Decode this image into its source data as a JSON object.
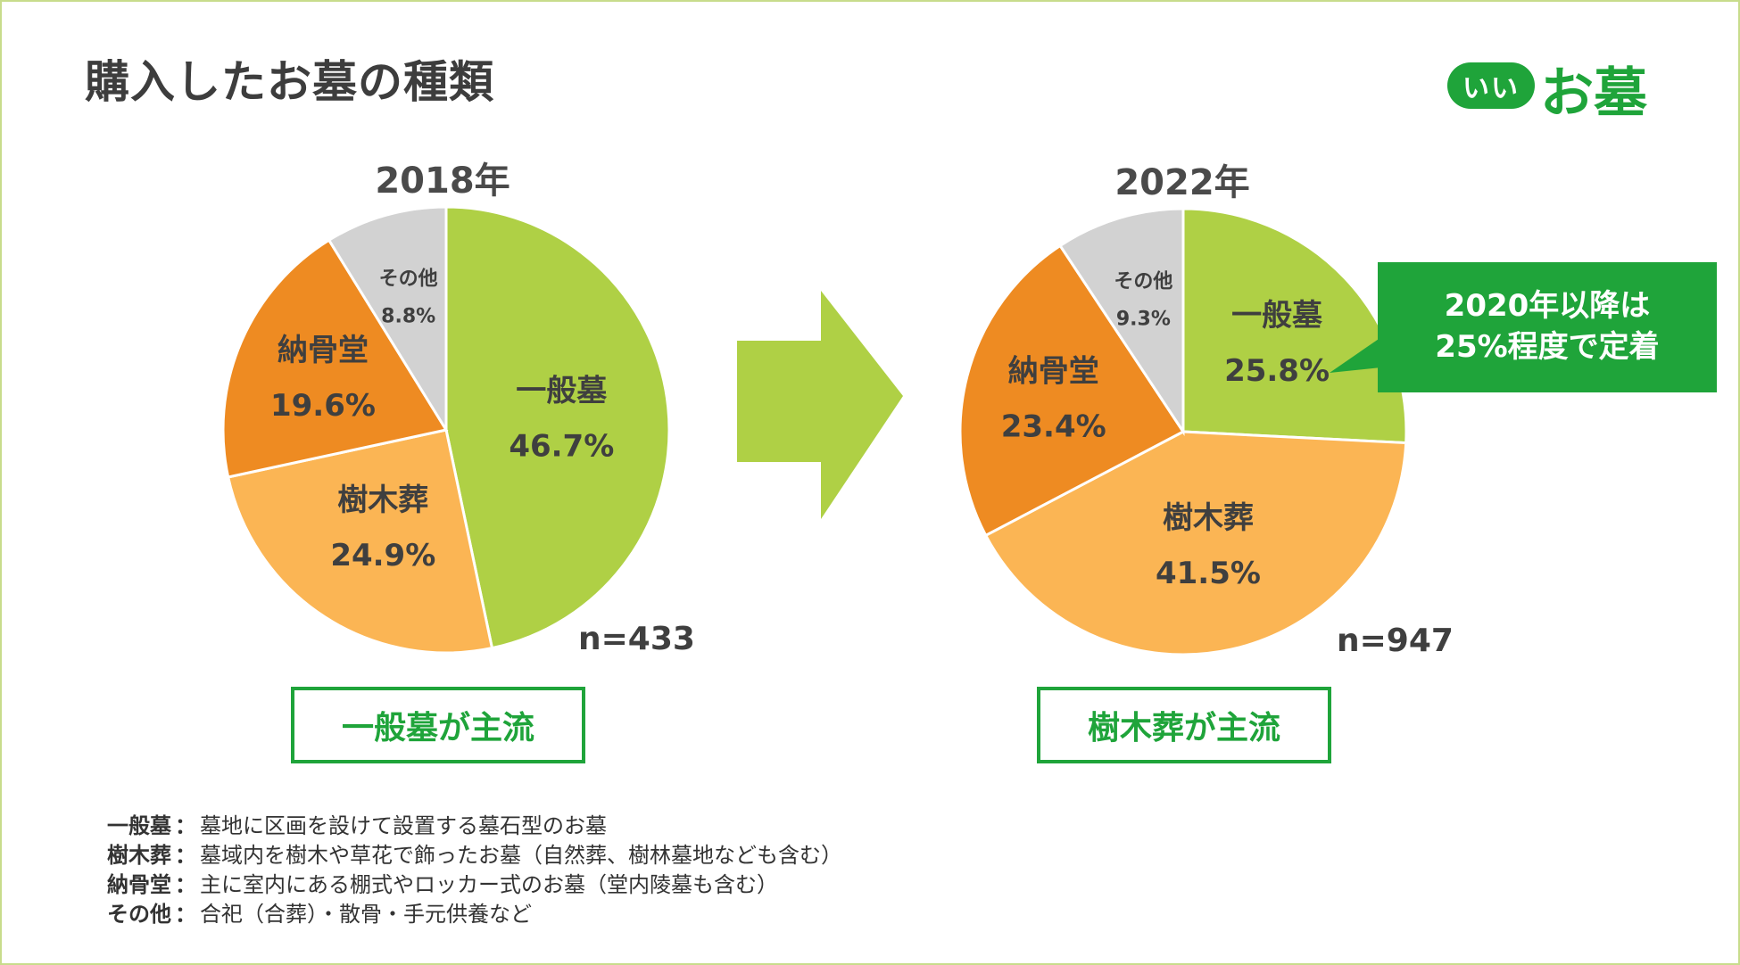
{
  "page_title": "購入したお墓の種類",
  "logo": {
    "mark": "いい",
    "text": "お墓"
  },
  "colors": {
    "ippan": "#afd045",
    "jumoku": "#fbb554",
    "noukotsu": "#ee8b22",
    "other": "#d2d2d2",
    "arrow": "#afd045",
    "accent": "#1fa43a",
    "border": "#c8dc8c"
  },
  "chart_data": [
    {
      "type": "pie",
      "title": "2018年",
      "n_label": "n=433",
      "slices": [
        {
          "name": "一般墓",
          "value": 46.7,
          "pct_label": "46.7%",
          "color": "#afd045"
        },
        {
          "name": "樹木葬",
          "value": 24.9,
          "pct_label": "24.9%",
          "color": "#fbb554"
        },
        {
          "name": "納骨堂",
          "value": 19.6,
          "pct_label": "19.6%",
          "color": "#ee8b22"
        },
        {
          "name": "その他",
          "value": 8.8,
          "pct_label": "8.8%",
          "color": "#d2d2d2"
        }
      ],
      "summary": "一般墓が主流"
    },
    {
      "type": "pie",
      "title": "2022年",
      "n_label": "n=947",
      "slices": [
        {
          "name": "一般墓",
          "value": 25.8,
          "pct_label": "25.8%",
          "color": "#afd045"
        },
        {
          "name": "樹木葬",
          "value": 41.5,
          "pct_label": "41.5%",
          "color": "#fbb554"
        },
        {
          "name": "納骨堂",
          "value": 23.4,
          "pct_label": "23.4%",
          "color": "#ee8b22"
        },
        {
          "name": "その他",
          "value": 9.3,
          "pct_label": "9.3%",
          "color": "#d2d2d2"
        }
      ],
      "summary": "樹木葬が主流"
    }
  ],
  "callout": {
    "line1": "2020年以降は",
    "line2": "25%程度で定着"
  },
  "legend": [
    {
      "term": "一般墓",
      "sep": "：",
      "desc": "墓地に区画を設けて設置する墓石型のお墓"
    },
    {
      "term": "樹木葬",
      "sep": "：",
      "desc": "墓域内を樹木や草花で飾ったお墓（自然葬、樹林墓地なども含む）"
    },
    {
      "term": "納骨堂",
      "sep": "：",
      "desc": "主に室内にある棚式やロッカー式のお墓（堂内陵墓も含む）"
    },
    {
      "term": "その他",
      "sep": "：",
      "desc": "合祀（合葬）・散骨・手元供養など"
    }
  ]
}
